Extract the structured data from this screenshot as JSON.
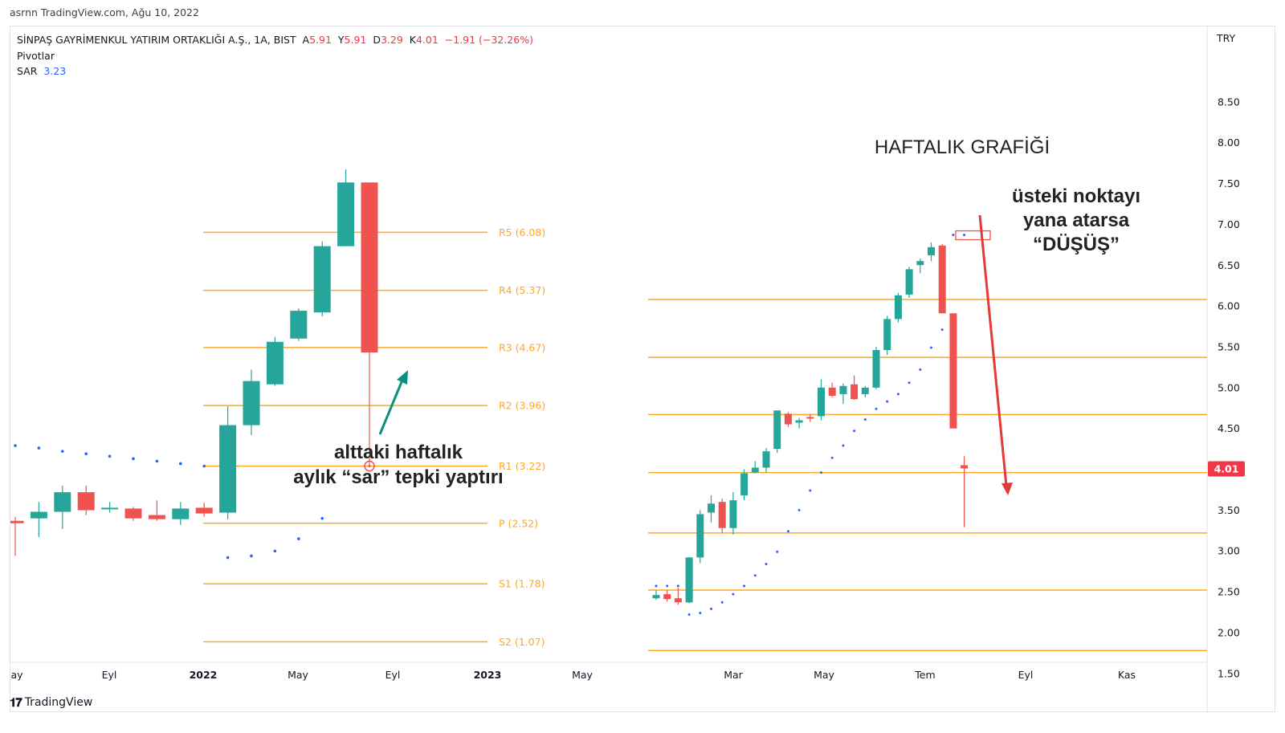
{
  "caption": "asrnn TradingView.com, Ağu 10, 2022",
  "legend": {
    "symbol": "SİNPAŞ GAYRİMENKUL YATIRIM ORTAKLIĞI A.Ş., 1A, BIST",
    "open_label": "A",
    "open": "5.91",
    "high_label": "Y",
    "high": "5.91",
    "low_label": "D",
    "low": "3.29",
    "close_label": "K",
    "close": "4.01",
    "change": "−1.91 (−32.26%)",
    "pivots": "Pivotlar",
    "sar_label": "SAR",
    "sar_value": "3.23"
  },
  "currency": "TRY",
  "price_badge": "4.01",
  "brand": "TradingView",
  "colors": {
    "up": "#26a69a",
    "down": "#ef5350",
    "pivot": "#ffa726",
    "sar": "#2962ff",
    "arrow_green": "#0b8f7f",
    "arrow_red": "#e53935"
  },
  "chart_data": {
    "type": "candlestick",
    "y_axis": {
      "ticks": [
        "8.50",
        "8.00",
        "7.50",
        "7.00",
        "6.50",
        "6.00",
        "5.50",
        "5.00",
        "4.50",
        "4.00",
        "3.50",
        "3.00",
        "2.50",
        "2.00",
        "1.50"
      ]
    },
    "x_axis": {
      "ticks": [
        "ay",
        "Eyl",
        "2022",
        "May",
        "Eyl",
        "2023",
        "May",
        "Mar",
        "May",
        "Tem",
        "Eyl",
        "Kas"
      ]
    },
    "monthly": {
      "pivots": [
        {
          "label": "R5 (6.08)",
          "value": 6.08
        },
        {
          "label": "R4 (5.37)",
          "value": 5.37
        },
        {
          "label": "R3 (4.67)",
          "value": 4.67
        },
        {
          "label": "R2 (3.96)",
          "value": 3.96
        },
        {
          "label": "R1 (3.22)",
          "value": 3.22
        },
        {
          "label": "P (2.52)",
          "value": 2.52
        },
        {
          "label": "S1 (1.78)",
          "value": 1.78
        },
        {
          "label": "S2 (1.07)",
          "value": 1.07
        }
      ],
      "candles": [
        {
          "o": 2.55,
          "h": 2.6,
          "l": 2.12,
          "c": 2.52
        },
        {
          "o": 2.58,
          "h": 2.78,
          "l": 2.35,
          "c": 2.66
        },
        {
          "o": 2.66,
          "h": 2.98,
          "l": 2.45,
          "c": 2.9
        },
        {
          "o": 2.9,
          "h": 2.98,
          "l": 2.62,
          "c": 2.68
        },
        {
          "o": 2.7,
          "h": 2.78,
          "l": 2.65,
          "c": 2.71
        },
        {
          "o": 2.7,
          "h": 2.72,
          "l": 2.55,
          "c": 2.58
        },
        {
          "o": 2.62,
          "h": 2.8,
          "l": 2.55,
          "c": 2.57
        },
        {
          "o": 2.57,
          "h": 2.78,
          "l": 2.5,
          "c": 2.7
        },
        {
          "o": 2.71,
          "h": 2.77,
          "l": 2.6,
          "c": 2.64
        },
        {
          "o": 2.65,
          "h": 3.95,
          "l": 2.57,
          "c": 3.72
        },
        {
          "o": 3.72,
          "h": 4.4,
          "l": 3.6,
          "c": 4.26
        },
        {
          "o": 4.22,
          "h": 4.8,
          "l": 4.2,
          "c": 4.74
        },
        {
          "o": 4.78,
          "h": 5.15,
          "l": 4.75,
          "c": 5.12
        },
        {
          "o": 5.1,
          "h": 5.97,
          "l": 5.05,
          "c": 5.91
        },
        {
          "o": 5.91,
          "h": 6.85,
          "l": 5.91,
          "c": 6.69
        },
        {
          "o": 6.69,
          "h": 6.69,
          "l": 3.22,
          "c": 4.61
        }
      ],
      "sar": [
        3.47,
        3.44,
        3.4,
        3.37,
        3.34,
        3.31,
        3.28,
        3.25,
        3.22,
        2.1,
        2.12,
        2.18,
        2.33,
        2.58,
        null,
        null
      ]
    },
    "weekly": {
      "title": "HAFTALIK GRAFİĞİ",
      "pivot_levels": [
        6.08,
        5.37,
        4.67,
        3.96,
        3.22,
        2.52,
        1.78
      ],
      "candles": [
        {
          "o": 2.42,
          "h": 2.52,
          "l": 2.4,
          "c": 2.46
        },
        {
          "o": 2.47,
          "h": 2.52,
          "l": 2.38,
          "c": 2.41
        },
        {
          "o": 2.42,
          "h": 2.55,
          "l": 2.34,
          "c": 2.37
        },
        {
          "o": 2.37,
          "h": 2.92,
          "l": 2.36,
          "c": 2.92
        },
        {
          "o": 2.92,
          "h": 3.5,
          "l": 2.85,
          "c": 3.45
        },
        {
          "o": 3.47,
          "h": 3.68,
          "l": 3.35,
          "c": 3.58
        },
        {
          "o": 3.6,
          "h": 3.64,
          "l": 3.22,
          "c": 3.28
        },
        {
          "o": 3.28,
          "h": 3.72,
          "l": 3.2,
          "c": 3.62
        },
        {
          "o": 3.68,
          "h": 4.0,
          "l": 3.62,
          "c": 3.95
        },
        {
          "o": 3.96,
          "h": 4.1,
          "l": 3.95,
          "c": 4.02
        },
        {
          "o": 4.02,
          "h": 4.26,
          "l": 3.96,
          "c": 4.22
        },
        {
          "o": 4.25,
          "h": 4.72,
          "l": 4.2,
          "c": 4.72
        },
        {
          "o": 4.68,
          "h": 4.7,
          "l": 4.52,
          "c": 4.55
        },
        {
          "o": 4.57,
          "h": 4.63,
          "l": 4.5,
          "c": 4.6
        },
        {
          "o": 4.64,
          "h": 4.68,
          "l": 4.58,
          "c": 4.62
        },
        {
          "o": 4.65,
          "h": 5.1,
          "l": 4.6,
          "c": 5.0
        },
        {
          "o": 5.0,
          "h": 5.06,
          "l": 4.88,
          "c": 4.9
        },
        {
          "o": 4.92,
          "h": 5.05,
          "l": 4.8,
          "c": 5.02
        },
        {
          "o": 5.04,
          "h": 5.15,
          "l": 4.85,
          "c": 4.86
        },
        {
          "o": 4.92,
          "h": 5.02,
          "l": 4.88,
          "c": 5.0
        },
        {
          "o": 5.0,
          "h": 5.5,
          "l": 4.98,
          "c": 5.46
        },
        {
          "o": 5.46,
          "h": 5.88,
          "l": 5.4,
          "c": 5.84
        },
        {
          "o": 5.84,
          "h": 6.16,
          "l": 5.8,
          "c": 6.13
        },
        {
          "o": 6.14,
          "h": 6.48,
          "l": 6.1,
          "c": 6.45
        },
        {
          "o": 6.5,
          "h": 6.58,
          "l": 6.4,
          "c": 6.55
        },
        {
          "o": 6.62,
          "h": 6.78,
          "l": 6.55,
          "c": 6.72
        },
        {
          "o": 6.74,
          "h": 6.76,
          "l": 5.91,
          "c": 5.91
        },
        {
          "o": 5.91,
          "h": 5.91,
          "l": 4.5,
          "c": 4.5
        },
        {
          "o": 4.05,
          "h": 4.16,
          "l": 3.29,
          "c": 4.01
        }
      ],
      "sar": [
        2.57,
        2.57,
        2.57,
        2.22,
        2.24,
        2.29,
        2.37,
        2.47,
        2.57,
        2.7,
        2.84,
        2.99,
        3.24,
        3.5,
        3.74,
        3.96,
        4.14,
        4.29,
        4.47,
        4.61,
        4.74,
        4.83,
        4.92,
        5.06,
        5.22,
        5.49,
        5.71,
        6.87,
        6.87
      ]
    },
    "annotations": {
      "green_text": [
        "alttaki haftalık",
        "aylık “sar” tepki yaptırı"
      ],
      "red_text": [
        "üsteki noktayı",
        "yana atarsa",
        "“DÜŞÜŞ”"
      ]
    }
  }
}
